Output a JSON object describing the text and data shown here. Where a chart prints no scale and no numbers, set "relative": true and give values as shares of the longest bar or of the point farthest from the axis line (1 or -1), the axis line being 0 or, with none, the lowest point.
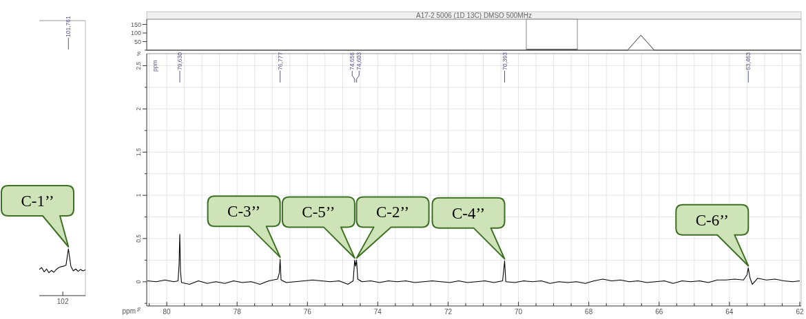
{
  "chart_data": [
    {
      "type": "line",
      "title": "A17-2 5006 (1D 13C) DMSO 500MHz",
      "ylabel": "%",
      "tick_labels": "y",
      "color": "#555555",
      "categories": [
        null,
        null,
        null,
        null,
        null,
        null,
        null,
        null,
        null,
        null,
        null,
        null,
        null,
        null,
        null,
        null,
        null,
        null,
        null,
        null,
        null,
        null,
        null,
        null,
        null,
        null,
        null,
        null,
        null,
        null,
        null,
        null,
        null,
        null,
        null,
        null,
        null,
        null,
        null,
        null,
        null,
        null,
        null,
        null,
        null,
        null,
        null,
        null,
        null,
        null
      ],
      "values": [
        0,
        0,
        0,
        0,
        0,
        0,
        0,
        0,
        0,
        0,
        0,
        0,
        0,
        0,
        0,
        0,
        0,
        0,
        0,
        0,
        0,
        0,
        0,
        0,
        0,
        0,
        0,
        0,
        0,
        0,
        0,
        0,
        0,
        0,
        0,
        0,
        0,
        87,
        0,
        0,
        0,
        0,
        0,
        0,
        0,
        0,
        0,
        0,
        0,
        0
      ],
      "ylim": [
        0,
        180
      ],
      "yticks": [
        {
          "value": 0,
          "label": null
        },
        50,
        100,
        150
      ]
    },
    {
      "type": "line",
      "relative": true,
      "color": "#000000",
      "categories": [
        null,
        null,
        null,
        null,
        null,
        null,
        null,
        null,
        null,
        null,
        null,
        null,
        null,
        null,
        null,
        null,
        null,
        null,
        null,
        null
      ],
      "values": [
        0.56,
        0.6,
        0.51,
        0.57,
        0.49,
        0.54,
        0.5,
        0.56,
        0.6,
        0.62,
        0.63,
        0.65,
        1,
        0.63,
        0.53,
        0.57,
        0.52,
        0.56,
        0.53,
        0.55
      ],
      "annotations": [
        "102",
        "101,761",
        "C-1’’"
      ]
    },
    {
      "type": "line",
      "color": "#000000",
      "grid": true,
      "xlabel": "ppm",
      "ylabel": "%",
      "x": [
        80.55,
        80.3,
        80.05,
        79.8,
        79.68,
        79.65,
        79.63,
        79.61,
        79.58,
        79.35,
        79.1,
        78.85,
        78.6,
        78.35,
        78.1,
        77.85,
        77.6,
        77.35,
        77.1,
        76.85,
        76.8,
        76.777,
        76.75,
        76.6,
        76.35,
        76.1,
        75.85,
        75.6,
        75.35,
        75.1,
        74.85,
        74.7,
        74.656,
        74.63,
        74.603,
        74.57,
        74.45,
        74.2,
        73.95,
        73.7,
        73.45,
        73.2,
        72.95,
        72.7,
        72.45,
        72.2,
        71.95,
        71.7,
        71.45,
        71.2,
        70.95,
        70.7,
        70.45,
        70.393,
        70.36,
        70.1,
        69.85,
        69.6,
        69.35,
        69.1,
        68.85,
        68.6,
        68.35,
        68.1,
        67.85,
        67.6,
        67.35,
        67.1,
        66.85,
        66.6,
        66.35,
        66.1,
        65.85,
        65.6,
        65.35,
        65.1,
        64.85,
        64.6,
        64.35,
        64.1,
        63.85,
        63.6,
        63.5,
        63.463,
        63.42,
        63.35,
        63.2,
        62.95,
        62.7,
        62.45,
        62.2,
        62.0
      ],
      "values": [
        0.01,
        0.0,
        0.02,
        0.0,
        0.01,
        0.2,
        0.55,
        0.12,
        -0.01,
        -0.03,
        0.01,
        -0.02,
        0.0,
        -0.02,
        0.01,
        -0.01,
        0.0,
        -0.03,
        0.01,
        0.03,
        0.1,
        0.26,
        0.02,
        -0.01,
        0.0,
        0.01,
        0.02,
        0.01,
        0.0,
        0.01,
        -0.03,
        0.01,
        0.25,
        0.18,
        0.25,
        0.03,
        0.0,
        0.01,
        -0.01,
        0.01,
        0.0,
        0.01,
        -0.01,
        0.0,
        0.01,
        0.0,
        -0.01,
        0.01,
        -0.01,
        0.0,
        0.01,
        -0.01,
        0.01,
        0.24,
        0.0,
        -0.01,
        0.01,
        0.0,
        0.01,
        -0.02,
        0.0,
        -0.01,
        0.0,
        -0.02,
        0.01,
        0.03,
        0.01,
        0.02,
        0.0,
        0.01,
        -0.01,
        0.0,
        0.01,
        -0.02,
        0.01,
        0.0,
        0.01,
        -0.01,
        0.02,
        0.02,
        0.03,
        0.02,
        0.08,
        0.16,
        0.05,
        -0.03,
        0.04,
        0.02,
        0.03,
        0.01,
        0.0,
        0.01
      ],
      "xlim": [
        80.57,
        61.96
      ],
      "ylim": [
        -0.28,
        2.64
      ],
      "xticks": [
        {
          "value": 80.5,
          "label": null
        },
        80,
        {
          "value": 79.5,
          "label": null
        },
        {
          "value": 79,
          "label": null
        },
        {
          "value": 78.5,
          "label": null
        },
        78,
        {
          "value": 77.5,
          "label": null
        },
        {
          "value": 77,
          "label": null
        },
        {
          "value": 76.5,
          "label": null
        },
        76,
        {
          "value": 75.5,
          "label": null
        },
        {
          "value": 75,
          "label": null
        },
        {
          "value": 74.5,
          "label": null
        },
        74,
        {
          "value": 73.5,
          "label": null
        },
        {
          "value": 73,
          "label": null
        },
        {
          "value": 72.5,
          "label": null
        },
        72,
        {
          "value": 71.5,
          "label": null
        },
        {
          "value": 71,
          "label": null
        },
        {
          "value": 70.5,
          "label": null
        },
        70,
        {
          "value": 69.5,
          "label": null
        },
        {
          "value": 69,
          "label": null
        },
        {
          "value": 68.5,
          "label": null
        },
        68,
        {
          "value": 67.5,
          "label": null
        },
        {
          "value": 67,
          "label": null
        },
        {
          "value": 66.5,
          "label": null
        },
        66,
        {
          "value": 65.5,
          "label": null
        },
        {
          "value": 65,
          "label": null
        },
        {
          "value": 64.5,
          "label": null
        },
        64,
        {
          "value": 63.5,
          "label": null
        },
        {
          "value": 63,
          "label": null
        },
        {
          "value": 62.5,
          "label": null
        },
        62
      ],
      "yticks": [
        {
          "value": -0.25,
          "label": null
        },
        0,
        {
          "value": 0.25,
          "label": null
        },
        {
          "value": 0.5,
          "label": "0,5"
        },
        {
          "value": 0.75,
          "label": null
        },
        1,
        {
          "value": 1.25,
          "label": null
        },
        {
          "value": 1.5,
          "label": "1,5"
        },
        {
          "value": 1.75,
          "label": null
        },
        2,
        {
          "value": 2.25,
          "label": null
        },
        {
          "value": 2.5,
          "label": "2,5"
        }
      ],
      "annotations": [
        "ppm",
        "79,630",
        "76,777",
        "74,656",
        "74,603",
        "70,393",
        "63,463",
        {
          "text": "C-3’’",
          "x": 76.777,
          "y": 0.26
        },
        {
          "text": "C-5’’",
          "x": 74.656,
          "y": 0.25
        },
        {
          "text": "C-2’’",
          "x": 74.603,
          "y": 0.25
        },
        {
          "text": "C-4’’",
          "x": 70.393,
          "y": 0.24
        },
        {
          "text": "C-6’’",
          "x": 63.463,
          "y": 0.16
        }
      ]
    }
  ]
}
